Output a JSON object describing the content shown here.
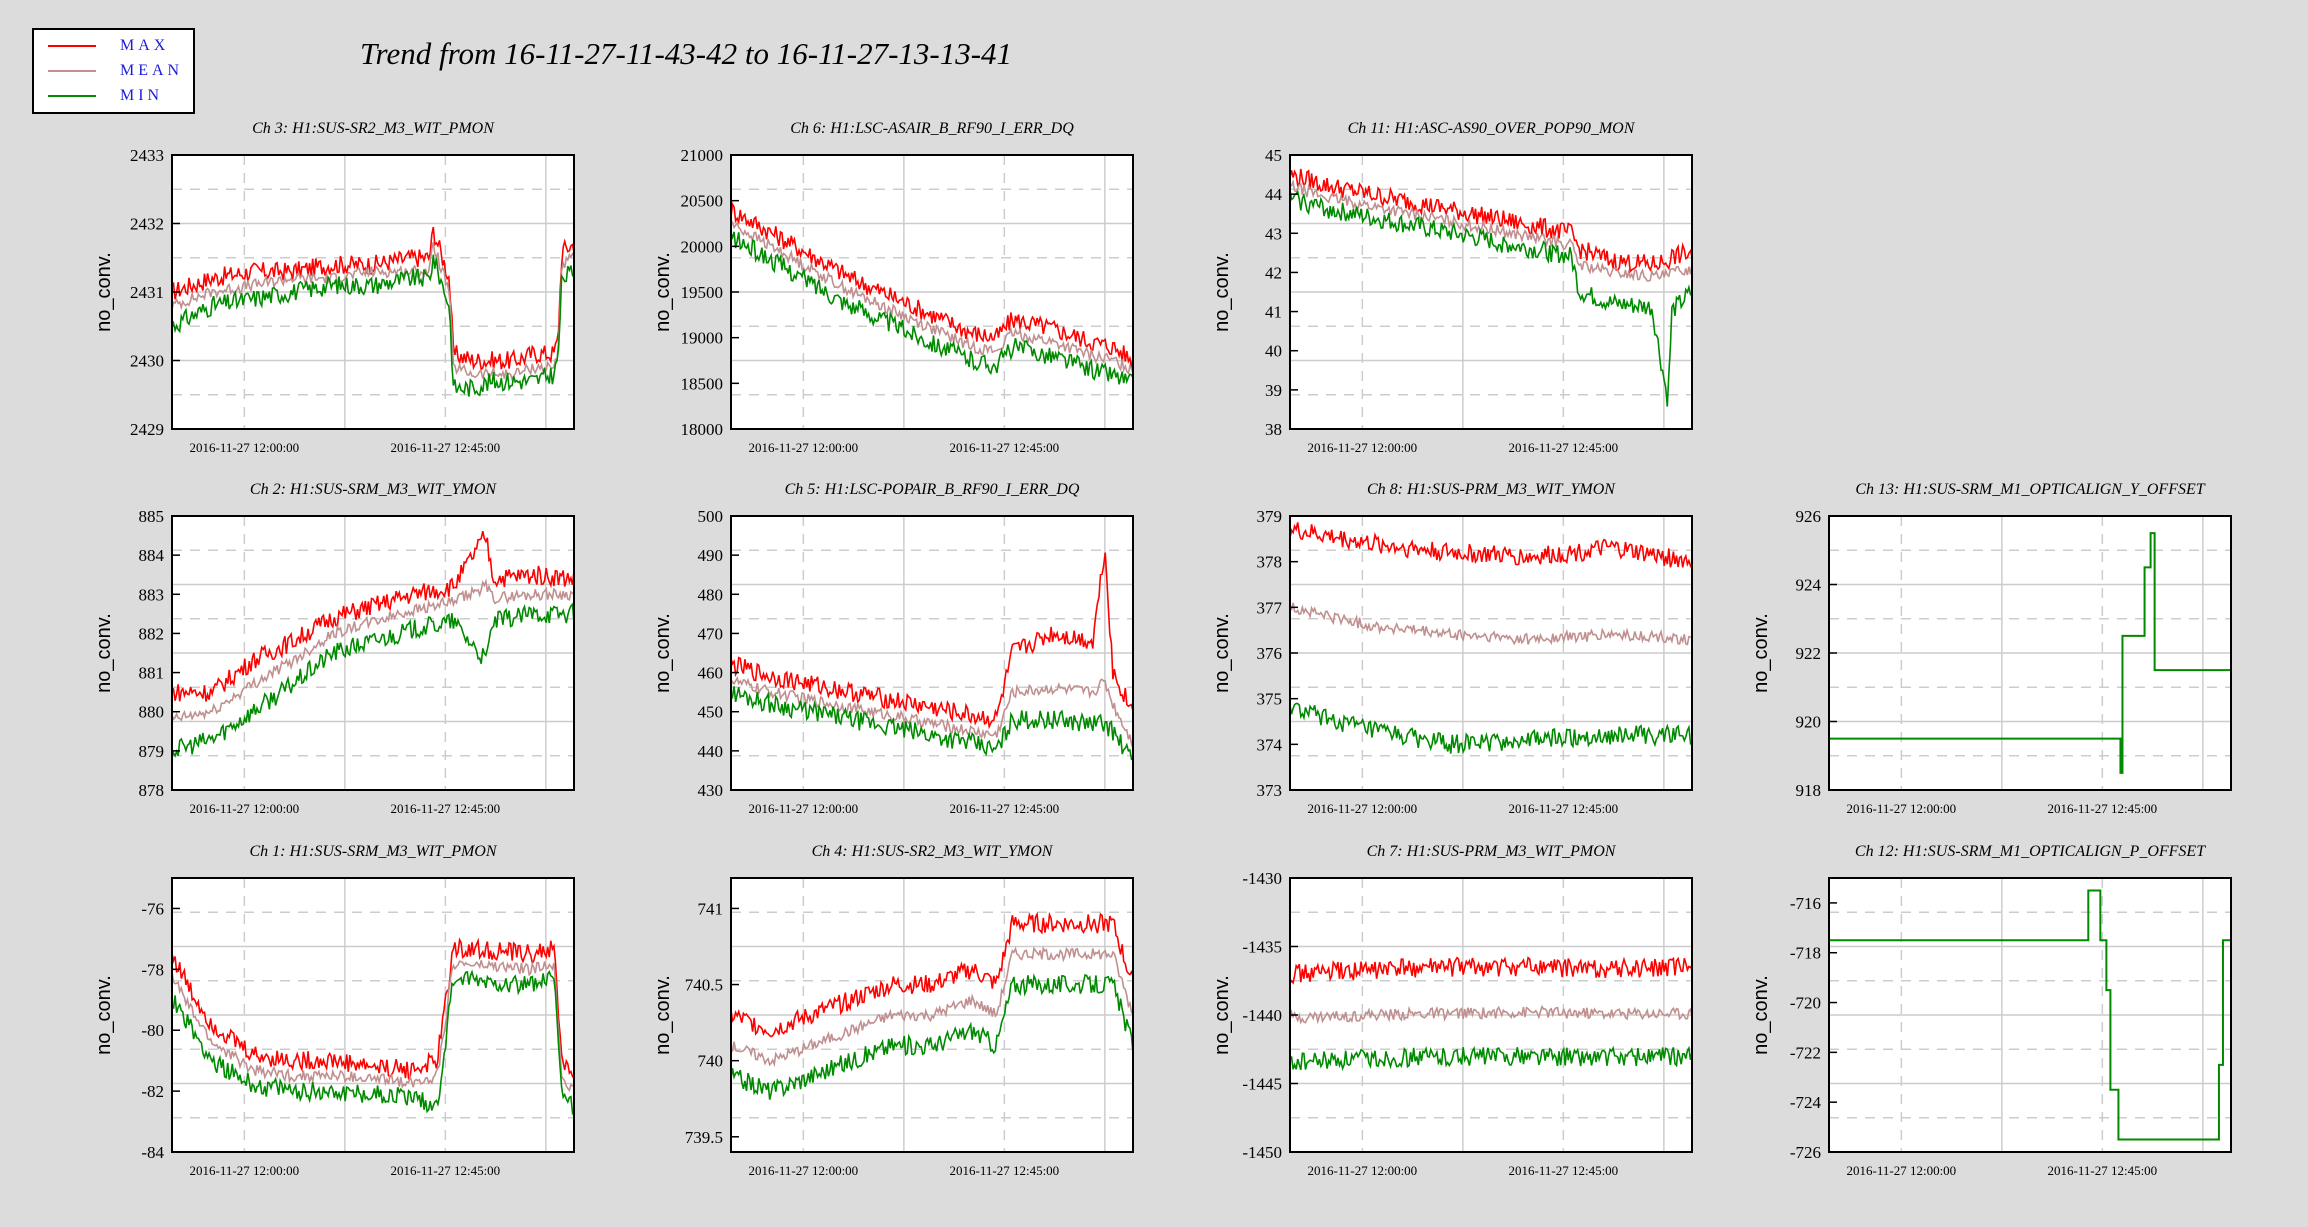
{
  "title": "Trend from 16-11-27-11-43-42 to 16-11-27-13-13-41",
  "legend": [
    {
      "label": "MAX",
      "color": "#ff0000"
    },
    {
      "label": "MEAN",
      "color": "#c09090"
    },
    {
      "label": "MIN",
      "color": "#008a00"
    }
  ],
  "chart_data": [
    {
      "id": "ch3",
      "title": "Ch 3: H1:SUS-SR2_M3_WIT_PMON",
      "type": "line",
      "ylabel": "no_conv.",
      "ylim": [
        2429,
        2433
      ],
      "yticks": [
        "2429",
        "2430",
        "2431",
        "2432",
        "2433"
      ],
      "xticks": [
        "2016-11-27 12:00:00",
        "2016-11-27 12:45:00"
      ],
      "x": [
        0,
        0.1,
        0.2,
        0.3,
        0.4,
        0.5,
        0.6,
        0.64,
        0.65,
        0.69,
        0.7,
        0.75,
        0.8,
        0.85,
        0.9,
        0.95,
        0.96,
        0.97,
        1.0
      ],
      "series": [
        {
          "name": "MAX",
          "values": [
            2431,
            2431.2,
            2431.3,
            2431.3,
            2431.4,
            2431.4,
            2431.5,
            2431.5,
            2431.9,
            2431.2,
            2430.1,
            2430.0,
            2430.0,
            2430.0,
            2430.1,
            2430.1,
            2430.3,
            2431.6,
            2431.7
          ]
        },
        {
          "name": "MEAN",
          "values": [
            2430.8,
            2431.0,
            2431.1,
            2431.2,
            2431.2,
            2431.3,
            2431.3,
            2431.3,
            2431.7,
            2431.0,
            2429.9,
            2429.8,
            2429.8,
            2429.8,
            2429.9,
            2429.9,
            2430.1,
            2431.4,
            2431.5
          ]
        },
        {
          "name": "MIN",
          "values": [
            2430.5,
            2430.8,
            2430.9,
            2431.0,
            2431.1,
            2431.1,
            2431.2,
            2431.2,
            2431.5,
            2430.8,
            2429.6,
            2429.6,
            2429.7,
            2429.7,
            2429.7,
            2429.8,
            2430.0,
            2431.2,
            2431.3
          ]
        }
      ]
    },
    {
      "id": "ch6",
      "title": "Ch 6: H1:LSC-ASAIR_B_RF90_I_ERR_DQ",
      "type": "line",
      "ylabel": "no_conv.",
      "ylim": [
        18000,
        21000
      ],
      "yticks": [
        "18000",
        "18500",
        "19000",
        "19500",
        "20000",
        "20500",
        "21000"
      ],
      "xticks": [
        "2016-11-27 12:00:00",
        "2016-11-27 12:45:00"
      ],
      "x": [
        0,
        0.1,
        0.2,
        0.3,
        0.4,
        0.5,
        0.6,
        0.66,
        0.7,
        0.8,
        0.9,
        0.95,
        1.0
      ],
      "series": [
        {
          "name": "MAX",
          "values": [
            20400,
            20150,
            19900,
            19650,
            19450,
            19250,
            19050,
            19000,
            19200,
            19100,
            18950,
            18900,
            18750
          ]
        },
        {
          "name": "MEAN",
          "values": [
            20250,
            20000,
            19750,
            19500,
            19300,
            19100,
            18900,
            18850,
            19050,
            18950,
            18800,
            18750,
            18650
          ]
        },
        {
          "name": "MIN",
          "values": [
            20100,
            19850,
            19600,
            19350,
            19150,
            18950,
            18750,
            18700,
            18900,
            18800,
            18650,
            18600,
            18500
          ]
        }
      ]
    },
    {
      "id": "ch11",
      "title": "Ch 11: H1:ASC-AS90_OVER_POP90_MON",
      "type": "line",
      "ylabel": "no_conv.",
      "ylim": [
        38,
        45
      ],
      "yticks": [
        "38",
        "39",
        "40",
        "41",
        "42",
        "43",
        "44",
        "45"
      ],
      "xticks": [
        "2016-11-27 12:00:00",
        "2016-11-27 12:45:00"
      ],
      "x": [
        0,
        0.1,
        0.2,
        0.3,
        0.4,
        0.5,
        0.6,
        0.7,
        0.72,
        0.8,
        0.9,
        0.94,
        0.95,
        1.0
      ],
      "series": [
        {
          "name": "MAX",
          "values": [
            44.5,
            44.2,
            44.0,
            43.8,
            43.6,
            43.4,
            43.2,
            43.0,
            42.6,
            42.3,
            42.2,
            42.3,
            42.4,
            42.5
          ]
        },
        {
          "name": "MEAN",
          "values": [
            44.2,
            43.9,
            43.7,
            43.5,
            43.3,
            43.1,
            42.9,
            42.7,
            42.2,
            42.0,
            41.9,
            41.9,
            42.0,
            42.1
          ]
        },
        {
          "name": "MIN",
          "values": [
            43.9,
            43.6,
            43.4,
            43.2,
            43.0,
            42.8,
            42.6,
            42.4,
            41.5,
            41.2,
            41.1,
            38.7,
            41.0,
            41.5
          ]
        }
      ]
    },
    {
      "id": "ch2",
      "title": "Ch 2: H1:SUS-SRM_M3_WIT_YMON",
      "type": "line",
      "ylabel": "no_conv.",
      "ylim": [
        878,
        885
      ],
      "yticks": [
        "878",
        "879",
        "880",
        "881",
        "882",
        "883",
        "884",
        "885"
      ],
      "xticks": [
        "2016-11-27 12:00:00",
        "2016-11-27 12:45:00"
      ],
      "x": [
        0,
        0.1,
        0.2,
        0.3,
        0.4,
        0.5,
        0.6,
        0.7,
        0.78,
        0.8,
        0.9,
        1.0
      ],
      "series": [
        {
          "name": "MAX",
          "values": [
            880.5,
            880.5,
            881.3,
            881.8,
            882.4,
            882.7,
            883.0,
            883.2,
            884.5,
            883.4,
            883.5,
            883.4
          ]
        },
        {
          "name": "MEAN",
          "values": [
            879.8,
            880.0,
            880.7,
            881.3,
            882.0,
            882.3,
            882.6,
            882.8,
            883.2,
            882.9,
            883.0,
            883.0
          ]
        },
        {
          "name": "MIN",
          "values": [
            879.0,
            879.3,
            880.0,
            880.7,
            881.5,
            881.8,
            882.1,
            882.3,
            881.3,
            882.3,
            882.5,
            882.5
          ]
        }
      ]
    },
    {
      "id": "ch5",
      "title": "Ch 5: H1:LSC-POPAIR_B_RF90_I_ERR_DQ",
      "type": "line",
      "ylabel": "no_conv.",
      "ylim": [
        430,
        500
      ],
      "yticks": [
        "430",
        "440",
        "450",
        "460",
        "470",
        "480",
        "490",
        "500"
      ],
      "xticks": [
        "2016-11-27 12:00:00",
        "2016-11-27 12:45:00"
      ],
      "x": [
        0,
        0.1,
        0.2,
        0.3,
        0.4,
        0.5,
        0.6,
        0.66,
        0.7,
        0.8,
        0.9,
        0.93,
        0.95,
        1.0
      ],
      "series": [
        {
          "name": "MAX",
          "values": [
            462,
            459,
            457,
            455,
            453,
            451,
            449,
            448,
            465,
            470,
            468,
            492,
            460,
            450
          ]
        },
        {
          "name": "MEAN",
          "values": [
            458,
            455,
            453,
            451,
            449,
            447,
            445,
            444,
            455,
            456,
            455,
            458,
            452,
            442
          ]
        },
        {
          "name": "MIN",
          "values": [
            455,
            452,
            450,
            448,
            446,
            444,
            442,
            440,
            448,
            448,
            447,
            447,
            445,
            437
          ]
        }
      ]
    },
    {
      "id": "ch8",
      "title": "Ch 8: H1:SUS-PRM_M3_WIT_YMON",
      "type": "line",
      "ylabel": "no_conv.",
      "ylim": [
        373,
        379
      ],
      "yticks": [
        "373",
        "374",
        "375",
        "376",
        "377",
        "378",
        "379"
      ],
      "xticks": [
        "2016-11-27 12:00:00",
        "2016-11-27 12:45:00"
      ],
      "x": [
        0,
        0.2,
        0.4,
        0.6,
        0.8,
        1.0
      ],
      "series": [
        {
          "name": "MAX",
          "values": [
            378.7,
            378.4,
            378.2,
            378.1,
            378.3,
            378.0
          ]
        },
        {
          "name": "MEAN",
          "values": [
            377.0,
            376.6,
            376.4,
            376.3,
            376.4,
            376.3
          ]
        },
        {
          "name": "MIN",
          "values": [
            374.8,
            374.3,
            374.0,
            374.1,
            374.2,
            374.2
          ]
        }
      ]
    },
    {
      "id": "ch13",
      "title": "Ch 13: H1:SUS-SRM_M1_OPTICALIGN_Y_OFFSET",
      "type": "line",
      "ylabel": "no_conv.",
      "ylim": [
        918,
        926
      ],
      "yticks": [
        "918",
        "920",
        "922",
        "924",
        "926"
      ],
      "xticks": [
        "2016-11-27 12:00:00",
        "2016-11-27 12:45:00"
      ],
      "x": [
        0,
        0.72,
        0.725,
        0.73,
        0.78,
        0.785,
        0.8,
        0.81,
        0.815,
        1.0
      ],
      "series": [
        {
          "name": "MIN",
          "values": [
            919.5,
            919.5,
            918.5,
            922.5,
            922.5,
            924.5,
            925.5,
            921.5,
            921.5,
            921.5
          ]
        }
      ]
    },
    {
      "id": "ch1",
      "title": "Ch 1: H1:SUS-SRM_M3_WIT_PMON",
      "type": "line",
      "ylabel": "no_conv.",
      "ylim": [
        -84,
        -75
      ],
      "yticks": [
        "-84",
        "-82",
        "-80",
        "-78",
        "-76"
      ],
      "xticks": [
        "2016-11-27 12:00:00",
        "2016-11-27 12:45:00"
      ],
      "x": [
        0,
        0.05,
        0.1,
        0.2,
        0.3,
        0.4,
        0.5,
        0.6,
        0.66,
        0.7,
        0.8,
        0.9,
        0.95,
        0.97,
        1.0
      ],
      "series": [
        {
          "name": "MAX",
          "values": [
            -77.5,
            -78.8,
            -79.8,
            -80.8,
            -81.0,
            -81.0,
            -81.2,
            -81.3,
            -81.0,
            -77.3,
            -77.4,
            -77.5,
            -77.3,
            -81.0,
            -81.5
          ]
        },
        {
          "name": "MEAN",
          "values": [
            -78.2,
            -79.4,
            -80.4,
            -81.3,
            -81.5,
            -81.5,
            -81.6,
            -81.7,
            -81.5,
            -77.8,
            -77.9,
            -78.0,
            -77.8,
            -81.5,
            -82.0
          ]
        },
        {
          "name": "MIN",
          "values": [
            -78.9,
            -80.0,
            -81.0,
            -81.8,
            -82.0,
            -82.0,
            -82.1,
            -82.2,
            -82.5,
            -78.3,
            -78.4,
            -78.5,
            -78.3,
            -82.0,
            -82.6
          ]
        }
      ]
    },
    {
      "id": "ch4",
      "title": "Ch 4: H1:SUS-SR2_M3_WIT_YMON",
      "type": "line",
      "ylabel": "no_conv.",
      "ylim": [
        739.4,
        741.2
      ],
      "yticks": [
        "739.5",
        "740",
        "740.5",
        "741"
      ],
      "xticks": [
        "2016-11-27 12:00:00",
        "2016-11-27 12:45:00"
      ],
      "x": [
        0,
        0.1,
        0.2,
        0.3,
        0.4,
        0.5,
        0.6,
        0.66,
        0.7,
        0.8,
        0.9,
        0.95,
        1.0
      ],
      "series": [
        {
          "name": "MAX",
          "values": [
            740.3,
            740.2,
            740.3,
            740.4,
            740.5,
            740.5,
            740.6,
            740.5,
            740.9,
            740.9,
            740.9,
            740.9,
            740.5
          ]
        },
        {
          "name": "MEAN",
          "values": [
            740.1,
            740.0,
            740.1,
            740.2,
            740.3,
            740.3,
            740.4,
            740.3,
            740.7,
            740.7,
            740.7,
            740.7,
            740.3
          ]
        },
        {
          "name": "MIN",
          "values": [
            739.9,
            739.8,
            739.9,
            740.0,
            740.1,
            740.1,
            740.2,
            740.1,
            740.5,
            740.5,
            740.5,
            740.5,
            740.1
          ]
        }
      ]
    },
    {
      "id": "ch7",
      "title": "Ch 7: H1:SUS-PRM_M3_WIT_PMON",
      "type": "line",
      "ylabel": "no_conv.",
      "ylim": [
        -1450,
        -1430
      ],
      "yticks": [
        "-1450",
        "-1445",
        "-1440",
        "-1435",
        "-1430"
      ],
      "xticks": [
        "2016-11-27 12:00:00",
        "2016-11-27 12:45:00"
      ],
      "x": [
        0,
        0.2,
        0.4,
        0.6,
        0.8,
        1.0
      ],
      "series": [
        {
          "name": "MAX",
          "values": [
            -1437.0,
            -1436.7,
            -1436.5,
            -1436.5,
            -1436.6,
            -1436.5
          ]
        },
        {
          "name": "MEAN",
          "values": [
            -1440.2,
            -1440.0,
            -1439.9,
            -1439.8,
            -1439.9,
            -1439.9
          ]
        },
        {
          "name": "MIN",
          "values": [
            -1443.5,
            -1443.2,
            -1443.0,
            -1443.0,
            -1443.1,
            -1443.0
          ]
        }
      ]
    },
    {
      "id": "ch12",
      "title": "Ch 12: H1:SUS-SRM_M1_OPTICALIGN_P_OFFSET",
      "type": "line",
      "ylabel": "no_conv.",
      "ylim": [
        -726,
        -715
      ],
      "yticks": [
        "-726",
        "-724",
        "-722",
        "-720",
        "-718",
        "-716"
      ],
      "xticks": [
        "2016-11-27 12:00:00",
        "2016-11-27 12:45:00"
      ],
      "x": [
        0,
        0.64,
        0.645,
        0.67,
        0.675,
        0.69,
        0.7,
        0.71,
        0.72,
        0.96,
        0.97,
        0.98,
        1.0
      ],
      "series": [
        {
          "name": "MIN",
          "values": [
            -717.5,
            -717.5,
            -715.5,
            -715.5,
            -717.5,
            -719.5,
            -723.5,
            -723.5,
            -725.5,
            -725.5,
            -722.5,
            -717.5,
            -717.5
          ]
        }
      ]
    }
  ]
}
